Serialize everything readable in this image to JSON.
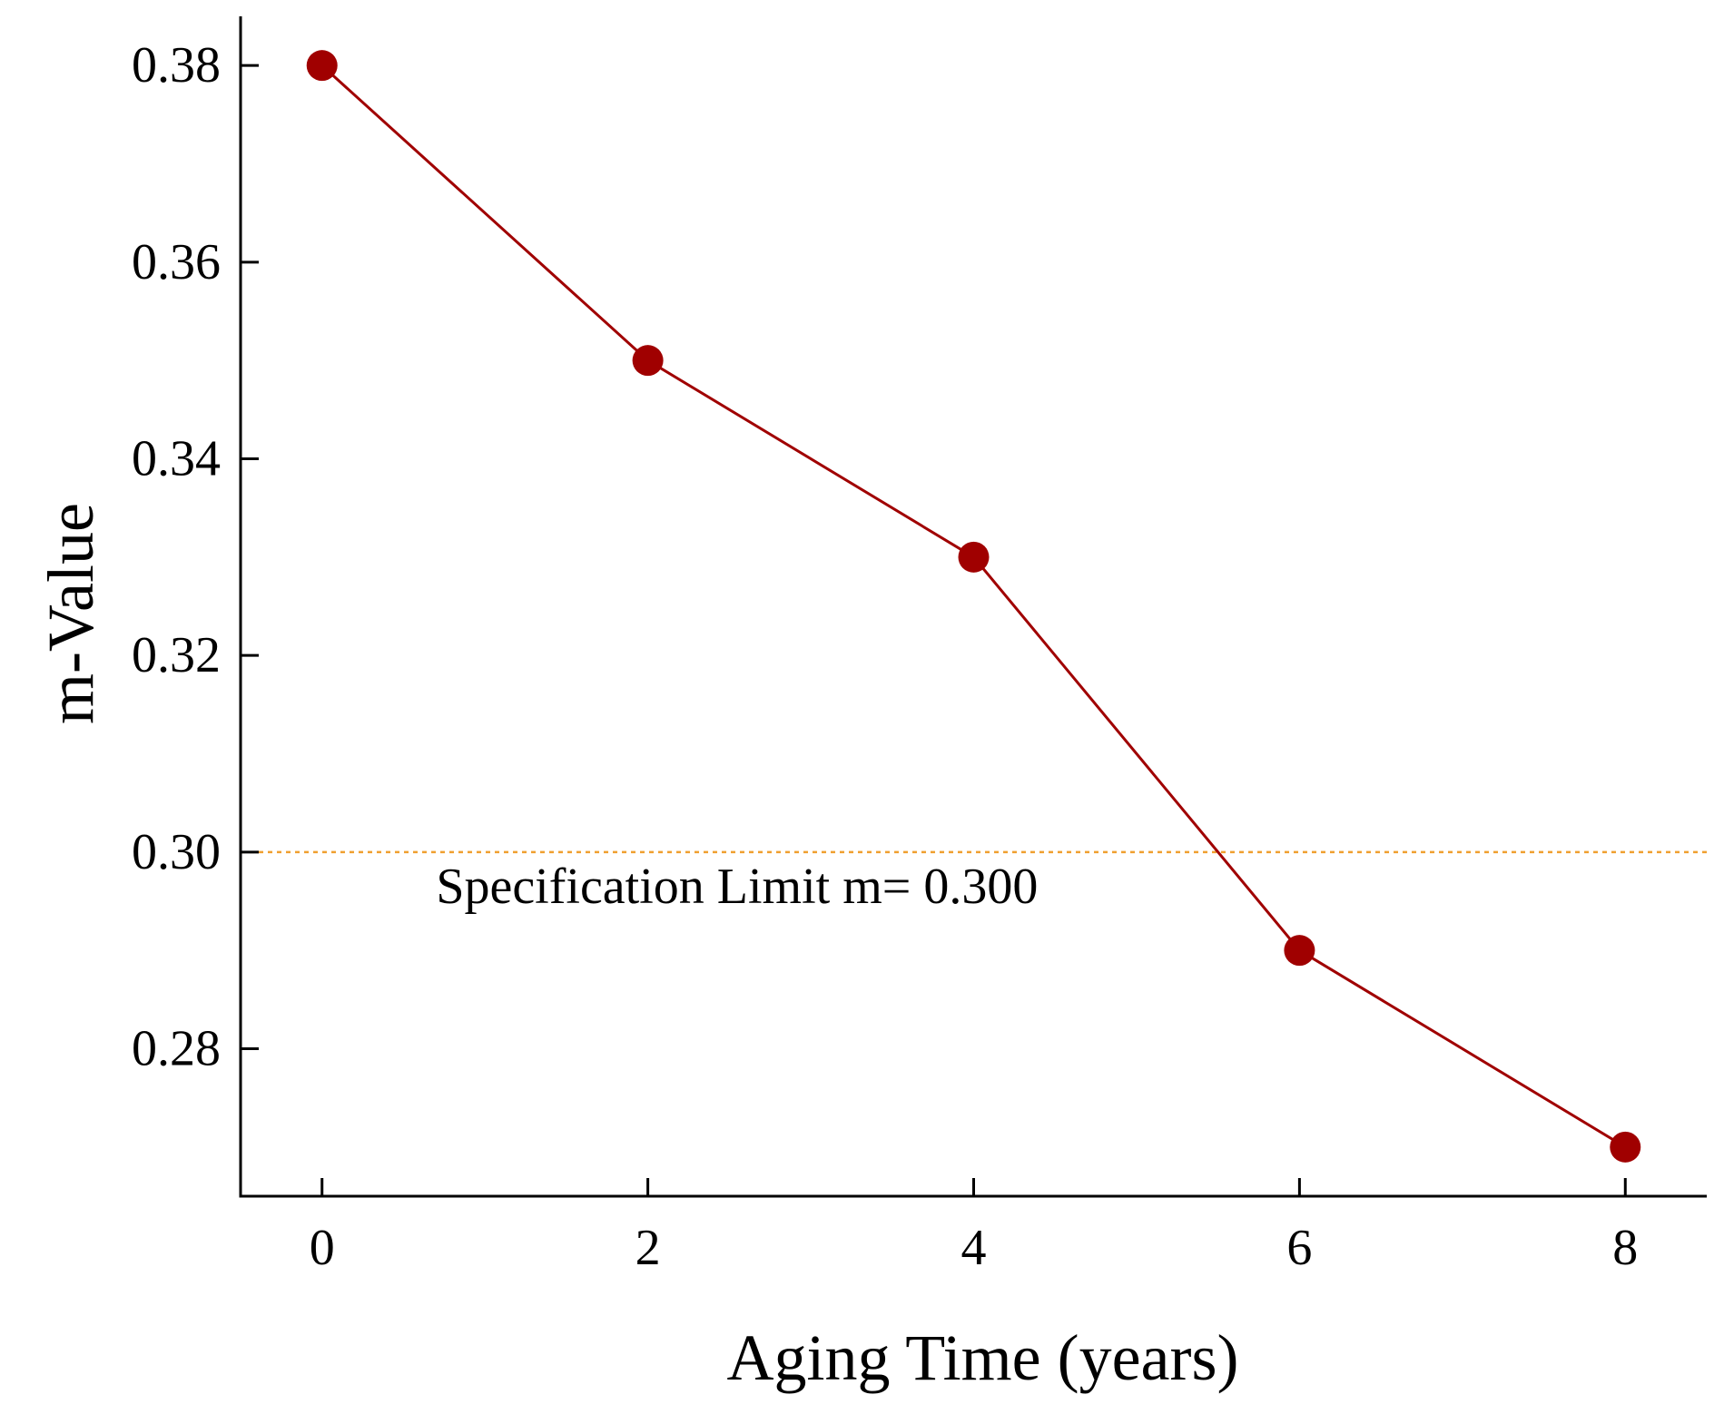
{
  "colors": {
    "series": "#a00000",
    "reference_line": "#f0a030",
    "axis": "#000000"
  },
  "chart_data": {
    "type": "line",
    "title": "",
    "xlabel": "Aging Time (years)",
    "ylabel": "m-Value",
    "xlim": [
      -0.5,
      8.5
    ],
    "ylim": [
      0.265,
      0.385
    ],
    "xticks": [
      0,
      2,
      4,
      6,
      8
    ],
    "xtick_labels": [
      "0",
      "2",
      "4",
      "6",
      "8"
    ],
    "yticks": [
      0.28,
      0.3,
      0.32,
      0.34,
      0.36,
      0.38
    ],
    "ytick_labels": [
      "0.28",
      "0.30",
      "0.32",
      "0.34",
      "0.36",
      "0.38"
    ],
    "grid": false,
    "legend": null,
    "series": [
      {
        "name": "m-Value",
        "x": [
          0,
          2,
          4,
          6,
          8
        ],
        "values": [
          0.38,
          0.35,
          0.33,
          0.29,
          0.27
        ],
        "marker": "circle"
      }
    ],
    "reference_lines": [
      {
        "axis": "y",
        "value": 0.3,
        "style": "dotted",
        "x_start": -0.5,
        "x_end": 8.5
      }
    ],
    "annotations": [
      {
        "text": "Specification Limit m= 0.300",
        "x": 0.7,
        "y": 0.2965
      }
    ]
  }
}
